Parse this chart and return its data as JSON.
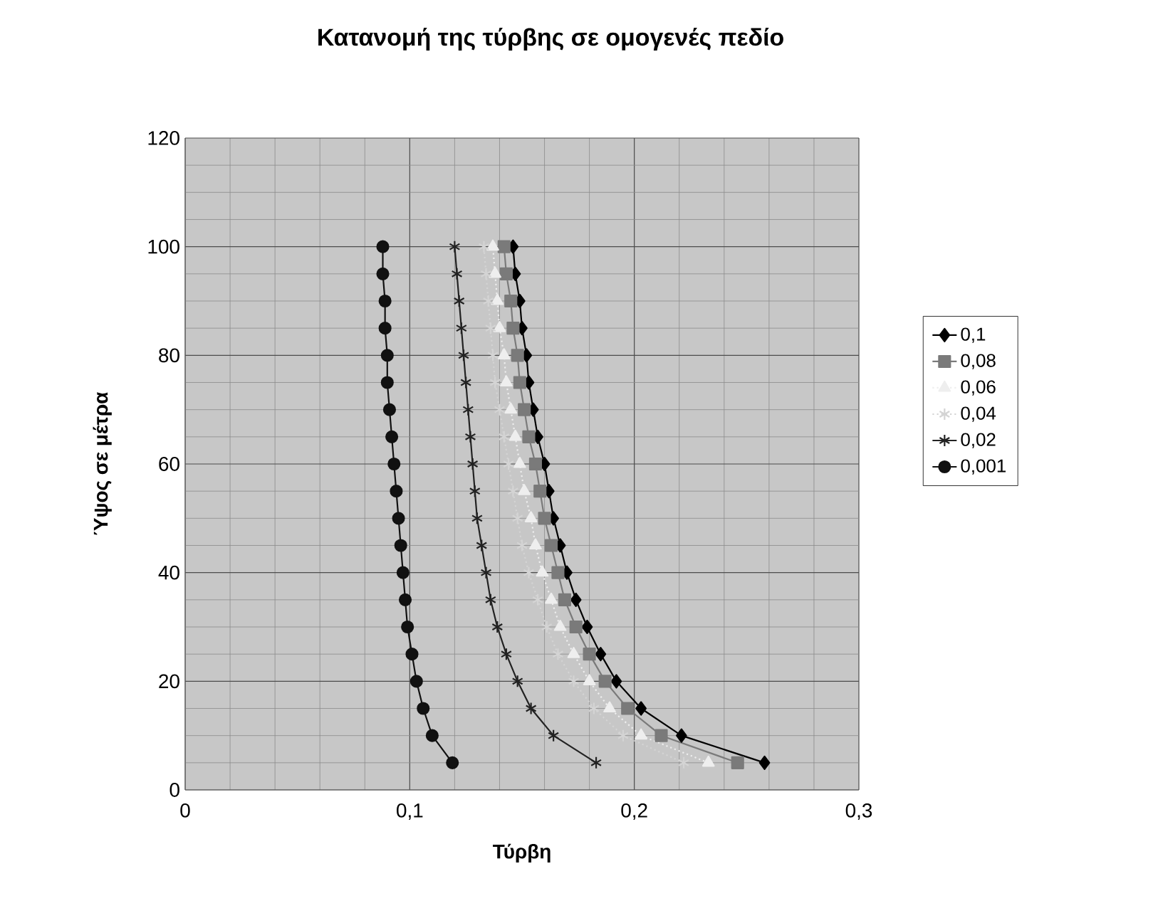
{
  "chart_data": {
    "type": "line",
    "title": "Κατανομή της τύρβης σε ομογενές πεδίο",
    "xlabel": "Τύρβη",
    "ylabel": "Ύψος σε μέτρα",
    "xlim": [
      0,
      0.3
    ],
    "xticks": [
      {
        "value": 0,
        "label": "0"
      },
      {
        "value": 0.1,
        "label": "0,1"
      },
      {
        "value": 0.2,
        "label": "0,2"
      },
      {
        "value": 0.3,
        "label": "0,3"
      }
    ],
    "ylim": [
      0,
      120
    ],
    "yticks": [
      0,
      20,
      40,
      60,
      80,
      100,
      120
    ],
    "grid": true,
    "legend": "right",
    "series": [
      {
        "name": "0,1",
        "color": "#000000",
        "marker": "diamond",
        "line_style": "solid",
        "x": [
          0.258,
          0.221,
          0.203,
          0.192,
          0.185,
          0.179,
          0.174,
          0.17,
          0.167,
          0.164,
          0.162,
          0.16,
          0.157,
          0.155,
          0.153,
          0.152,
          0.15,
          0.149,
          0.147,
          0.146
        ],
        "values": [
          5,
          10,
          15,
          20,
          25,
          30,
          35,
          40,
          45,
          50,
          55,
          60,
          65,
          70,
          75,
          80,
          85,
          90,
          95,
          100
        ]
      },
      {
        "name": "0,08",
        "color": "#7a7a7a",
        "marker": "square",
        "line_style": "solid",
        "x": [
          0.246,
          0.212,
          0.197,
          0.187,
          0.18,
          0.174,
          0.169,
          0.166,
          0.163,
          0.16,
          0.158,
          0.156,
          0.153,
          0.151,
          0.149,
          0.148,
          0.146,
          0.145,
          0.143,
          0.142
        ],
        "values": [
          5,
          10,
          15,
          20,
          25,
          30,
          35,
          40,
          45,
          50,
          55,
          60,
          65,
          70,
          75,
          80,
          85,
          90,
          95,
          100
        ]
      },
      {
        "name": "0,06",
        "color": "#eeeeee",
        "marker": "triangle",
        "line_style": "dotted",
        "x": [
          0.233,
          0.203,
          0.189,
          0.18,
          0.173,
          0.167,
          0.163,
          0.159,
          0.156,
          0.154,
          0.151,
          0.149,
          0.147,
          0.145,
          0.143,
          0.142,
          0.14,
          0.139,
          0.138,
          0.137
        ],
        "values": [
          5,
          10,
          15,
          20,
          25,
          30,
          35,
          40,
          45,
          50,
          55,
          60,
          65,
          70,
          75,
          80,
          85,
          90,
          95,
          100
        ]
      },
      {
        "name": "0,04",
        "color": "#d4d4d4",
        "marker": "cross",
        "line_style": "dotted",
        "x": [
          0.222,
          0.195,
          0.182,
          0.173,
          0.166,
          0.161,
          0.157,
          0.153,
          0.15,
          0.148,
          0.146,
          0.144,
          0.142,
          0.14,
          0.138,
          0.137,
          0.136,
          0.135,
          0.134,
          0.133
        ],
        "values": [
          5,
          10,
          15,
          20,
          25,
          30,
          35,
          40,
          45,
          50,
          55,
          60,
          65,
          70,
          75,
          80,
          85,
          90,
          95,
          100
        ]
      },
      {
        "name": "0,02",
        "color": "#222222",
        "marker": "cross",
        "line_style": "solid",
        "x": [
          0.183,
          0.164,
          0.154,
          0.148,
          0.143,
          0.139,
          0.136,
          0.134,
          0.132,
          0.13,
          0.129,
          0.128,
          0.127,
          0.126,
          0.125,
          0.124,
          0.123,
          0.122,
          0.121,
          0.12
        ],
        "values": [
          5,
          10,
          15,
          20,
          25,
          30,
          35,
          40,
          45,
          50,
          55,
          60,
          65,
          70,
          75,
          80,
          85,
          90,
          95,
          100
        ]
      },
      {
        "name": "0,001",
        "color": "#111111",
        "marker": "circle",
        "line_style": "solid",
        "x": [
          0.119,
          0.11,
          0.106,
          0.103,
          0.101,
          0.099,
          0.098,
          0.097,
          0.096,
          0.095,
          0.094,
          0.093,
          0.092,
          0.091,
          0.09,
          0.09,
          0.089,
          0.089,
          0.088,
          0.088
        ],
        "values": [
          5,
          10,
          15,
          20,
          25,
          30,
          35,
          40,
          45,
          50,
          55,
          60,
          65,
          70,
          75,
          80,
          85,
          90,
          95,
          100
        ]
      }
    ]
  }
}
